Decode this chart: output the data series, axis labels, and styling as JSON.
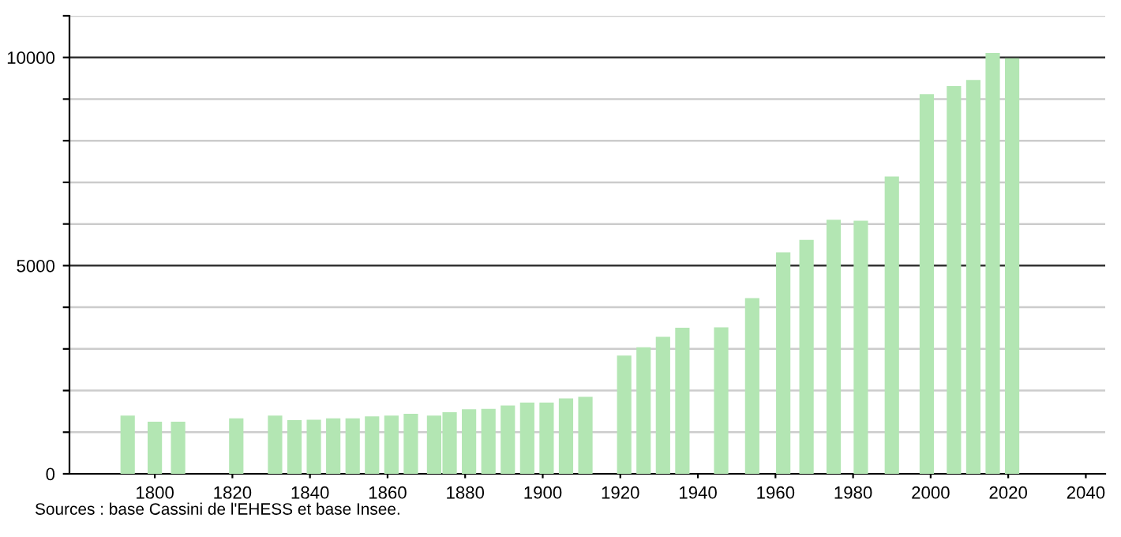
{
  "chart_data": {
    "type": "bar",
    "color": "#b3e6b3",
    "x": [
      1793,
      1800,
      1806,
      1821,
      1831,
      1836,
      1841,
      1846,
      1851,
      1856,
      1861,
      1866,
      1872,
      1876,
      1881,
      1886,
      1891,
      1896,
      1901,
      1906,
      1911,
      1921,
      1926,
      1931,
      1936,
      1946,
      1954,
      1962,
      1968,
      1975,
      1982,
      1990,
      1999,
      2006,
      2011,
      2016,
      2021
    ],
    "values": [
      1400,
      1250,
      1250,
      1330,
      1400,
      1290,
      1300,
      1330,
      1330,
      1380,
      1400,
      1440,
      1400,
      1480,
      1550,
      1560,
      1640,
      1710,
      1710,
      1810,
      1850,
      2840,
      3040,
      3290,
      3510,
      3520,
      4220,
      5320,
      5620,
      6100,
      6080,
      7140,
      9120,
      9310,
      9460,
      10110,
      9980
    ],
    "xlim": [
      1778,
      2045
    ],
    "xticks": [
      1800,
      1820,
      1840,
      1860,
      1880,
      1900,
      1920,
      1940,
      1960,
      1980,
      2000,
      2020,
      2040
    ],
    "ylim": [
      0,
      11000
    ],
    "yticks": [
      0,
      {
        "value": 1000,
        "label": null
      },
      {
        "value": 2000,
        "label": null
      },
      {
        "value": 3000,
        "label": null
      },
      {
        "value": 4000,
        "label": null
      },
      5000,
      {
        "value": 6000,
        "label": null
      },
      {
        "value": 7000,
        "label": null
      },
      {
        "value": 8000,
        "label": null
      },
      {
        "value": 9000,
        "label": null
      },
      10000,
      {
        "value": 11000,
        "label": null
      }
    ],
    "grid": "y",
    "annotations": [
      "Sources : base Cassini de l'EHESS et base Insee."
    ]
  }
}
